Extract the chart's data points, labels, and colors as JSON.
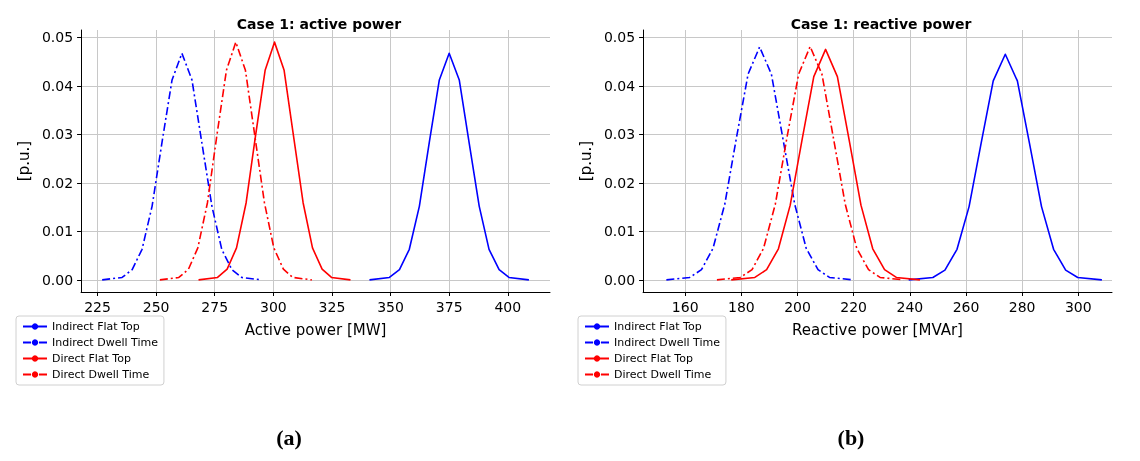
{
  "chart_data": [
    {
      "type": "line",
      "title": "Case 1: active power",
      "xlabel": "Active power [MW]",
      "ylabel": "[p.u.]",
      "annotations": [
        "(a)"
      ],
      "xlim": [
        218,
        418
      ],
      "xticks": [
        225,
        250,
        275,
        300,
        325,
        350,
        375,
        400
      ],
      "ylim": [
        -0.0025,
        0.0515
      ],
      "yticks": [
        {
          "value": 0,
          "label": "0.00"
        },
        {
          "value": 0.01,
          "label": "0.01"
        },
        {
          "value": 0.02,
          "label": "0.02"
        },
        {
          "value": 0.03,
          "label": "0.03"
        },
        {
          "value": 0.04,
          "label": "0.04"
        },
        {
          "value": 0.05,
          "label": "0.05"
        }
      ],
      "grid": true,
      "legend": "bottom left",
      "marker": "none",
      "series": [
        {
          "name": "Indirect Flat Top",
          "color": "#0000ff",
          "line_style": "solid",
          "x": [
            341,
            349.5,
            353.8,
            358,
            362.3,
            366.5,
            370.8,
            375,
            379.3,
            383.5,
            387.8,
            392,
            396.3,
            400.5,
            409
          ],
          "values": [
            0.0,
            0.0005,
            0.0021,
            0.0063,
            0.0152,
            0.0283,
            0.0412,
            0.0467,
            0.0412,
            0.0283,
            0.0152,
            0.0063,
            0.0021,
            0.0005,
            0.0
          ]
        },
        {
          "name": "Indirect Dwell Time",
          "color": "#0000ff",
          "line_style": "dashdot",
          "x": [
            227,
            235.5,
            239.8,
            244,
            248.3,
            252.5,
            256.8,
            261,
            265.3,
            269.5,
            273.8,
            278,
            282.3,
            286.5,
            295
          ],
          "values": [
            0.0,
            0.0005,
            0.0021,
            0.0063,
            0.0152,
            0.0283,
            0.0412,
            0.0467,
            0.0412,
            0.0283,
            0.0152,
            0.0063,
            0.0021,
            0.0005,
            0.0
          ]
        },
        {
          "name": "Direct Flat Top",
          "color": "#ff0000",
          "line_style": "solid",
          "x": [
            268.1,
            276.2,
            280.3,
            284.3,
            288.4,
            292.4,
            296.5,
            300.5,
            304.6,
            308.6,
            312.7,
            316.7,
            320.8,
            324.8,
            332.9
          ],
          "values": [
            0.0,
            0.0005,
            0.0022,
            0.0066,
            0.0159,
            0.0297,
            0.0432,
            0.049,
            0.0432,
            0.0297,
            0.0159,
            0.0066,
            0.0022,
            0.0005,
            0.0
          ]
        },
        {
          "name": "Direct Dwell Time",
          "color": "#ff0000",
          "line_style": "dashdot",
          "x": [
            251.6,
            259.7,
            263.8,
            267.8,
            271.9,
            275.9,
            280,
            284,
            288.1,
            292.1,
            296.2,
            300.2,
            304.3,
            308.3,
            316.4
          ],
          "values": [
            0.0,
            0.0005,
            0.0022,
            0.0066,
            0.0159,
            0.0297,
            0.0432,
            0.049,
            0.0432,
            0.0297,
            0.0159,
            0.0066,
            0.0022,
            0.0005,
            0.0
          ]
        }
      ]
    },
    {
      "type": "line",
      "title": "Case 1: reactive power",
      "xlabel": "Reactive power [MVAr]",
      "ylabel": "[p.u.]",
      "annotations": [
        "(b)"
      ],
      "xlim": [
        145,
        312
      ],
      "xticks": [
        160,
        180,
        200,
        220,
        240,
        260,
        280,
        300
      ],
      "ylim": [
        -0.0025,
        0.0515
      ],
      "yticks": [
        {
          "value": 0,
          "label": "0.00"
        },
        {
          "value": 0.01,
          "label": "0.01"
        },
        {
          "value": 0.02,
          "label": "0.02"
        },
        {
          "value": 0.03,
          "label": "0.03"
        },
        {
          "value": 0.04,
          "label": "0.04"
        },
        {
          "value": 0.05,
          "label": "0.05"
        }
      ],
      "grid": true,
      "legend": "bottom left",
      "marker": "none",
      "series": [
        {
          "name": "Indirect Flat Top",
          "color": "#0000ff",
          "line_style": "solid",
          "x": [
            239.6,
            248.2,
            252.5,
            256.8,
            261.1,
            265.4,
            269.7,
            274,
            278.3,
            282.6,
            286.9,
            291.2,
            295.5,
            299.8,
            308.4
          ],
          "values": [
            0.0,
            0.0005,
            0.002,
            0.0063,
            0.0151,
            0.0282,
            0.041,
            0.0465,
            0.041,
            0.0282,
            0.0151,
            0.0063,
            0.002,
            0.0005,
            0.0
          ]
        },
        {
          "name": "Indirect Dwell Time",
          "color": "#0000ff",
          "line_style": "dashdot",
          "x": [
            153.3,
            161.6,
            165.8,
            169.9,
            174.1,
            178.2,
            182.4,
            186.5,
            190.7,
            194.8,
            199,
            203.1,
            207.3,
            211.4,
            219.7
          ],
          "values": [
            0.0,
            0.0005,
            0.0021,
            0.0065,
            0.0156,
            0.0291,
            0.0424,
            0.048,
            0.0424,
            0.0291,
            0.0156,
            0.0065,
            0.0021,
            0.0005,
            0.0
          ]
        },
        {
          "name": "Direct Flat Top",
          "color": "#ff0000",
          "line_style": "solid",
          "x": [
            176.4,
            184.8,
            189,
            193.2,
            197.4,
            201.6,
            205.8,
            210,
            214.2,
            218.4,
            222.6,
            226.8,
            231,
            235.2,
            243.6
          ],
          "values": [
            0.0,
            0.0005,
            0.0021,
            0.0064,
            0.0154,
            0.0288,
            0.0419,
            0.0475,
            0.0419,
            0.0288,
            0.0154,
            0.0064,
            0.0021,
            0.0005,
            0.0
          ]
        },
        {
          "name": "Direct Dwell Time",
          "color": "#ff0000",
          "line_style": "dashdot",
          "x": [
            171.3,
            179.6,
            183.8,
            187.9,
            192.1,
            196.2,
            200.4,
            204.5,
            208.7,
            212.8,
            217,
            221.1,
            225.3,
            229.4,
            237.7
          ],
          "values": [
            0.0,
            0.0005,
            0.0021,
            0.0065,
            0.0156,
            0.0292,
            0.0424,
            0.0481,
            0.0424,
            0.0292,
            0.0156,
            0.0065,
            0.0021,
            0.0005,
            0.0
          ]
        }
      ]
    }
  ]
}
